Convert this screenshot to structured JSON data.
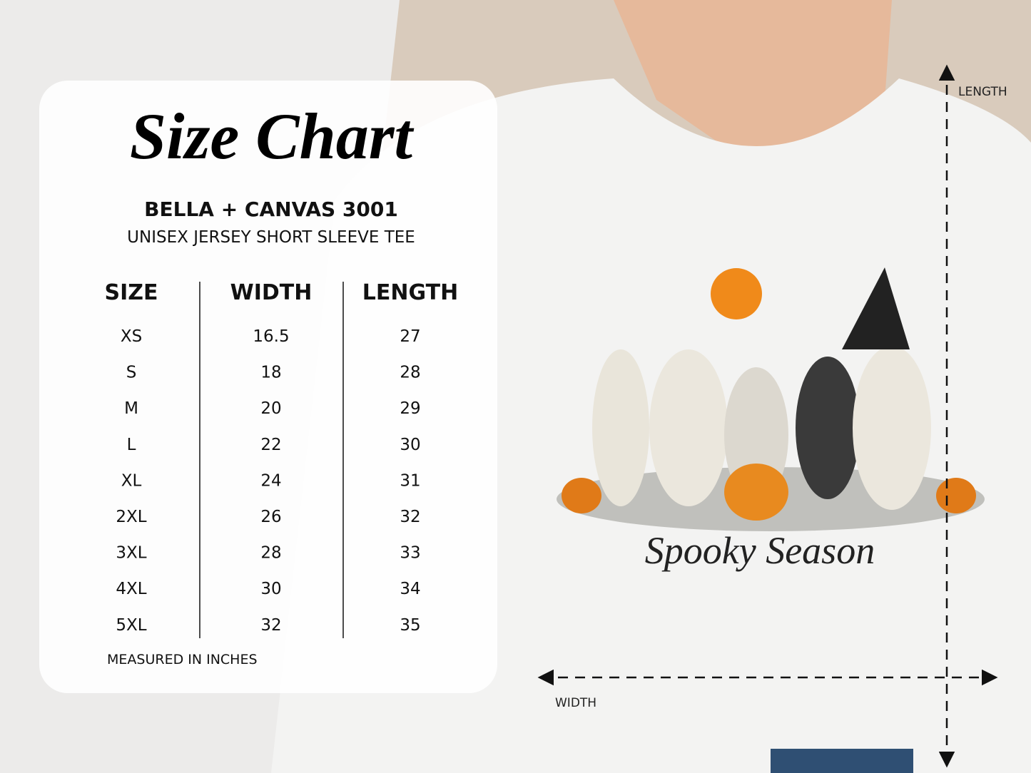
{
  "panel": {
    "title": "Size Chart",
    "brand": "BELLA + CANVAS 3001",
    "subtitle": "UNISEX JERSEY SHORT SLEEVE TEE",
    "table": {
      "headers": [
        "SIZE",
        "WIDTH",
        "LENGTH"
      ],
      "rows": [
        [
          "XS",
          "16.5",
          "27"
        ],
        [
          "S",
          "18",
          "28"
        ],
        [
          "M",
          "20",
          "29"
        ],
        [
          "L",
          "22",
          "30"
        ],
        [
          "XL",
          "24",
          "31"
        ],
        [
          "2XL",
          "26",
          "32"
        ],
        [
          "3XL",
          "28",
          "33"
        ],
        [
          "4XL",
          "30",
          "34"
        ],
        [
          "5XL",
          "32",
          "35"
        ]
      ]
    },
    "note": "MEASURED IN INCHES"
  },
  "shirt": {
    "print_text": "Spooky Season",
    "length_label": "LENGTH",
    "width_label": "WIDTH"
  }
}
